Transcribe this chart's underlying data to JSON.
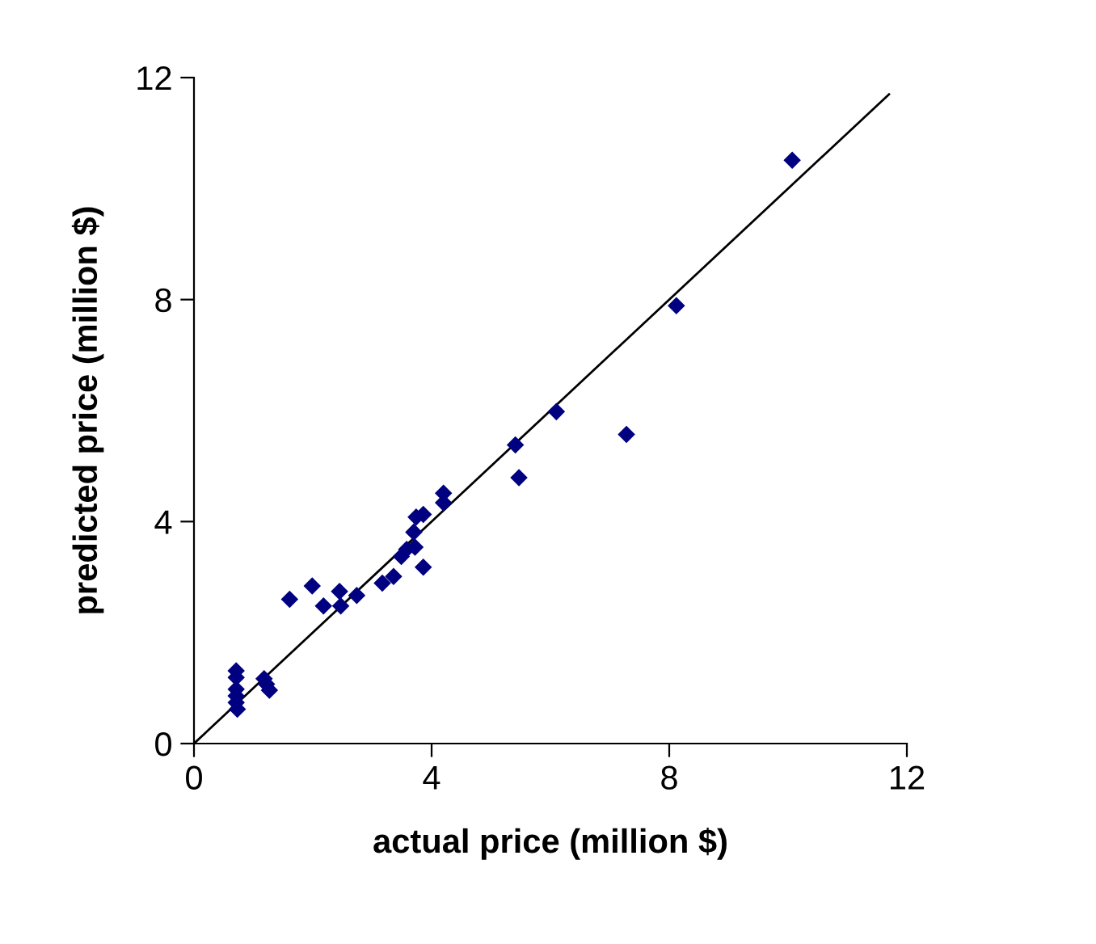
{
  "chart_data": {
    "type": "scatter",
    "xlabel": "actual price (million $)",
    "ylabel": "predicted price (million $)",
    "xlim": [
      0,
      12
    ],
    "ylim": [
      0,
      12
    ],
    "xticks": [
      0,
      4,
      8,
      12
    ],
    "yticks": [
      0,
      4,
      8,
      12
    ],
    "grid": false,
    "legend": false,
    "marker": "diamond",
    "series": [
      {
        "color": "#000080",
        "x": [
          10.07,
          8.12,
          7.28,
          6.1,
          5.41,
          5.47,
          4.2,
          4.2,
          3.86,
          3.74,
          3.7,
          3.72,
          3.58,
          3.49,
          3.86,
          3.36,
          3.17,
          1.99,
          1.61,
          2.45,
          2.74,
          2.18,
          2.47,
          0.71,
          0.71,
          0.71,
          0.71,
          0.71,
          0.73,
          1.18,
          1.27,
          1.22
        ],
        "values": [
          10.51,
          7.89,
          5.57,
          5.98,
          5.38,
          4.79,
          4.51,
          4.34,
          4.13,
          4.08,
          3.81,
          3.54,
          3.5,
          3.37,
          3.18,
          3.01,
          2.89,
          2.84,
          2.6,
          2.74,
          2.67,
          2.48,
          2.48,
          1.31,
          1.19,
          0.98,
          0.86,
          0.74,
          0.62,
          1.17,
          0.96,
          1.07
        ]
      },
      {
        "type": "line",
        "color": "#000000",
        "x": [
          0,
          11.7
        ],
        "values": [
          0,
          11.7
        ],
        "marker": "none",
        "line_style": "solid"
      }
    ]
  }
}
